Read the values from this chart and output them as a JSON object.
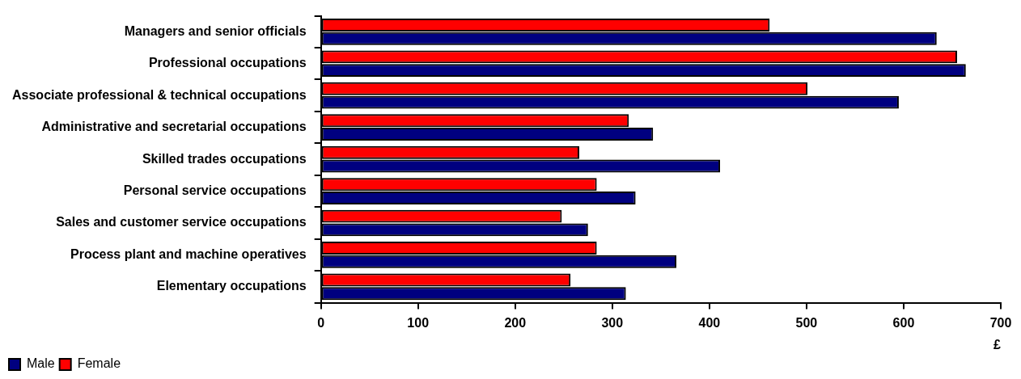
{
  "chart_data": {
    "type": "bar",
    "orientation": "horizontal",
    "xlabel": "£",
    "categories": [
      "Managers and senior officials",
      "Professional occupations",
      "Associate professional & technical occupations",
      "Administrative and secretarial occupations",
      "Skilled trades occupations",
      "Personal service occupations",
      "Sales and customer service occupations",
      "Process plant and machine operatives",
      "Elementary occupations"
    ],
    "series": [
      {
        "name": "Female",
        "color": "#ff0000",
        "values": [
          462,
          655,
          501,
          317,
          266,
          284,
          248,
          284,
          257
        ]
      },
      {
        "name": "Male",
        "color": "#000080",
        "values": [
          634,
          664,
          595,
          342,
          411,
          324,
          275,
          366,
          314
        ]
      }
    ],
    "xlim": [
      0,
      700
    ],
    "xticks": [
      0,
      100,
      200,
      300,
      400,
      500,
      600,
      700
    ],
    "grid": false,
    "legend": "bottom left"
  }
}
